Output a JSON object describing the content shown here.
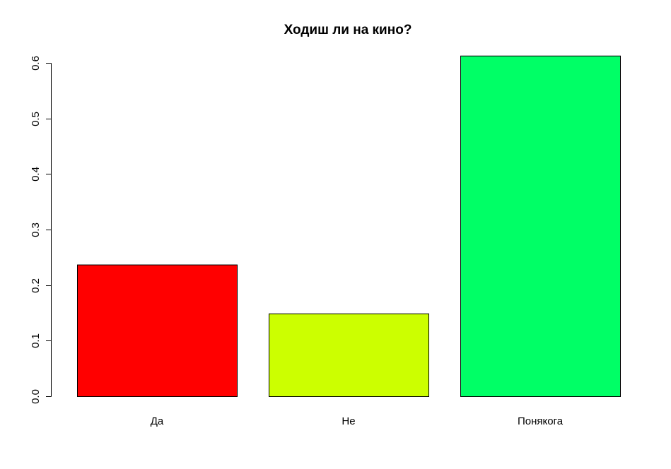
{
  "chart_data": {
    "type": "bar",
    "title": "Ходиш ли на кино?",
    "xlabel": "",
    "ylabel": "",
    "categories": [
      "Да",
      "Не",
      "Понякога"
    ],
    "values": [
      0.237,
      0.149,
      0.613
    ],
    "colors": [
      "#ff0000",
      "#ccff00",
      "#00ff66"
    ],
    "ylim": [
      0,
      0.6
    ],
    "yticks": [
      0.0,
      0.1,
      0.2,
      0.3,
      0.4,
      0.5,
      0.6
    ],
    "ytick_labels": [
      "0.0",
      "0.1",
      "0.2",
      "0.3",
      "0.4",
      "0.5",
      "0.6"
    ],
    "grid": false,
    "legend": "none"
  }
}
